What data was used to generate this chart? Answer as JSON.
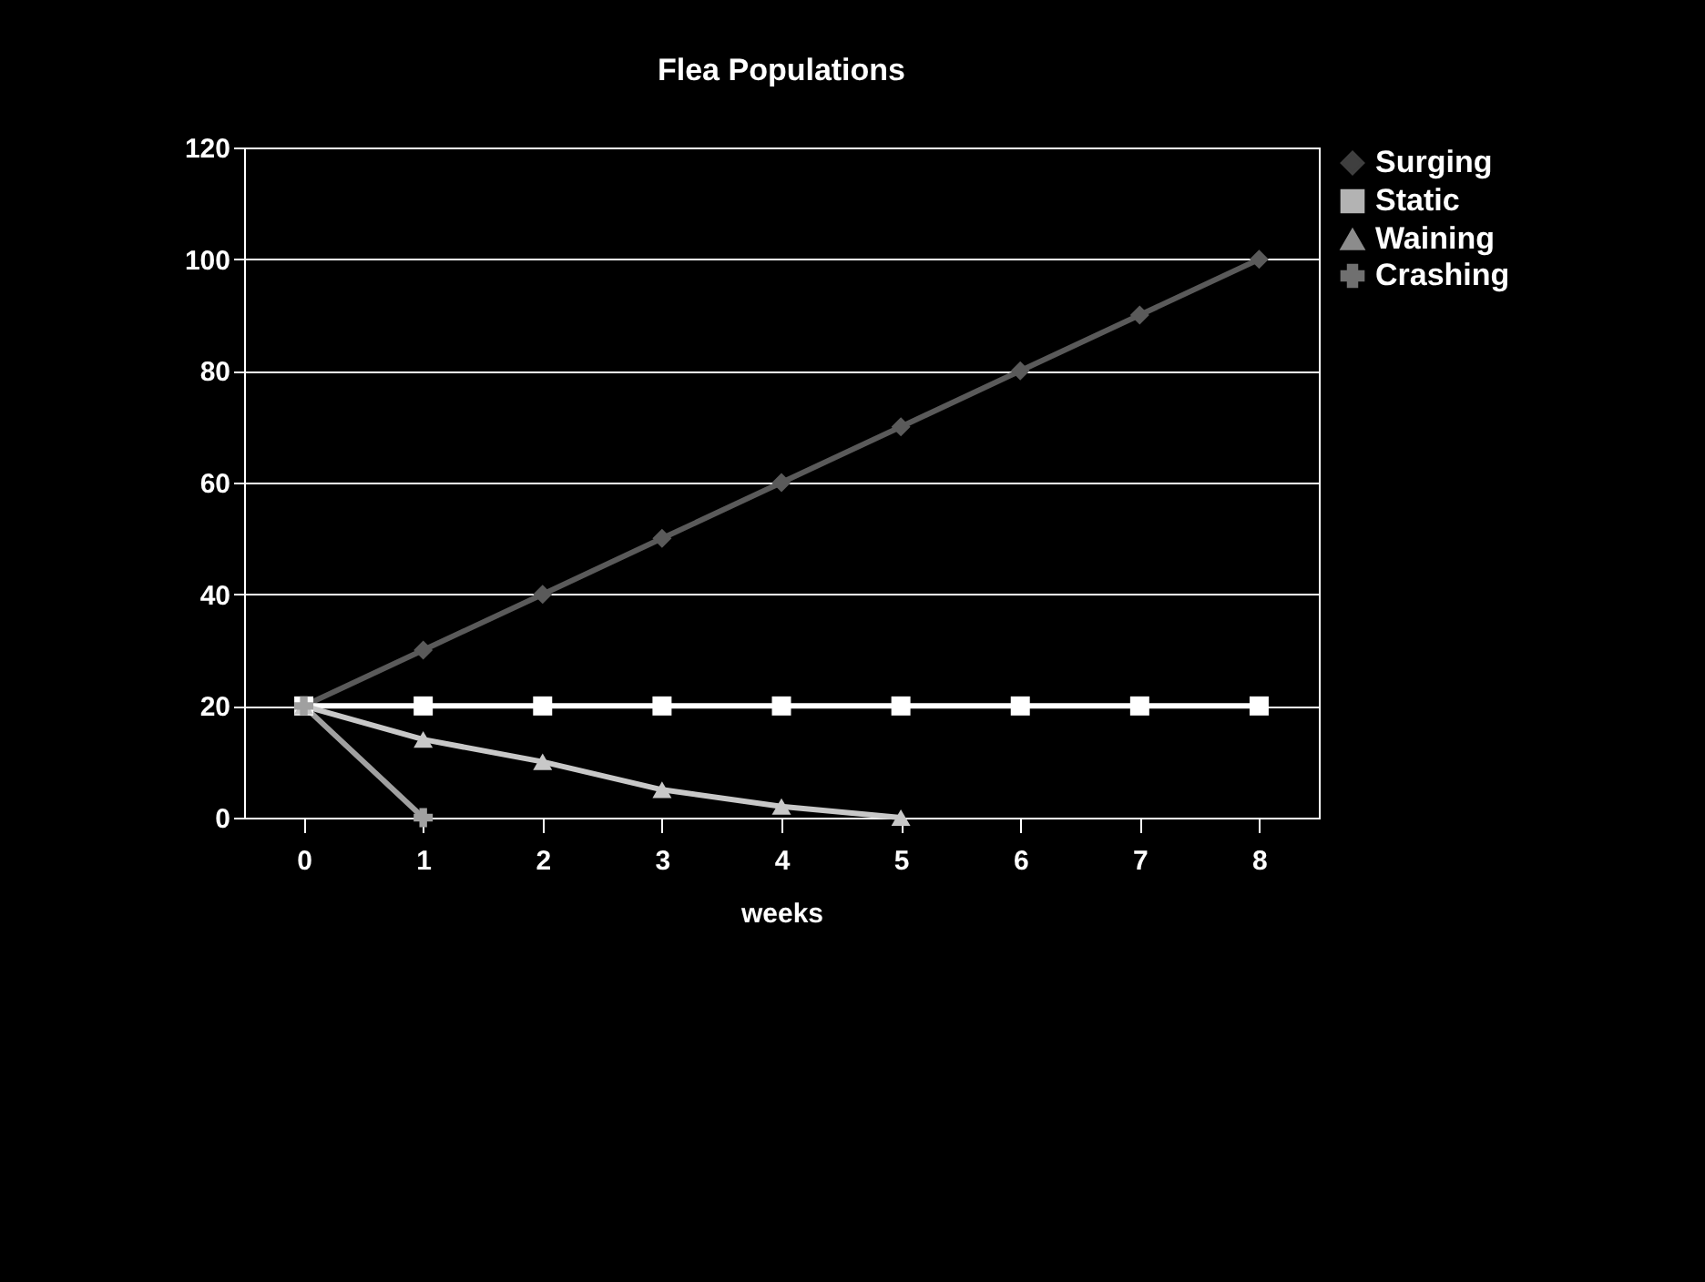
{
  "chart_data": {
    "type": "line",
    "title": "Flea Populations",
    "xlabel": "weeks",
    "categories": [
      "0",
      "1",
      "2",
      "3",
      "4",
      "5",
      "6",
      "7",
      "8"
    ],
    "series": [
      {
        "name": "Surging",
        "color": "#5a5a5a",
        "marker": "diamond",
        "values": [
          20,
          30,
          40,
          50,
          60,
          70,
          80,
          90,
          100
        ]
      },
      {
        "name": "Static",
        "color": "#ffffff",
        "marker": "square",
        "values": [
          20,
          20,
          20,
          20,
          20,
          20,
          20,
          20,
          20
        ]
      },
      {
        "name": "Waining",
        "color": "#c8c8c8",
        "marker": "triangle",
        "values": [
          20,
          14,
          10,
          5,
          2,
          0,
          null,
          null,
          null
        ]
      },
      {
        "name": "Crashing",
        "color": "#a0a0a0",
        "marker": "cross",
        "values": [
          20,
          0,
          null,
          null,
          null,
          null,
          null,
          null,
          null
        ]
      }
    ],
    "ylim": [
      0,
      120
    ],
    "yticks": [
      0,
      20,
      40,
      60,
      80,
      100,
      120
    ],
    "grid": "y",
    "legend": "right",
    "line_style": "solid"
  }
}
